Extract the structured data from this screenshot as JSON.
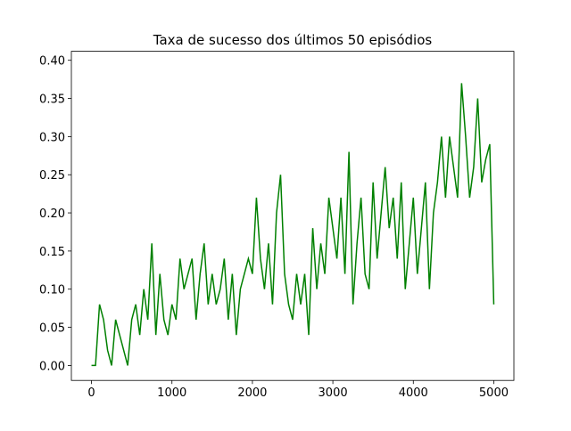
{
  "chart_data": {
    "type": "line",
    "title": "Taxa de sucesso dos últimos 50 episódios",
    "x": [
      0,
      50,
      100,
      150,
      200,
      250,
      300,
      350,
      400,
      450,
      500,
      550,
      600,
      650,
      700,
      750,
      800,
      850,
      900,
      950,
      1000,
      1050,
      1100,
      1150,
      1200,
      1250,
      1300,
      1350,
      1400,
      1450,
      1500,
      1550,
      1600,
      1650,
      1700,
      1750,
      1800,
      1850,
      1900,
      1950,
      2000,
      2050,
      2100,
      2150,
      2200,
      2250,
      2300,
      2350,
      2400,
      2450,
      2500,
      2550,
      2600,
      2650,
      2700,
      2750,
      2800,
      2850,
      2900,
      2950,
      3000,
      3050,
      3100,
      3150,
      3200,
      3250,
      3300,
      3350,
      3400,
      3450,
      3500,
      3550,
      3600,
      3650,
      3700,
      3750,
      3800,
      3850,
      3900,
      3950,
      4000,
      4050,
      4100,
      4150,
      4200,
      4250,
      4300,
      4350,
      4400,
      4450,
      4500,
      4550,
      4600,
      4650,
      4700,
      4750,
      4800,
      4850,
      4900,
      4950,
      5000
    ],
    "values": [
      0,
      0,
      0.08,
      0.06,
      0.02,
      0,
      0.06,
      0.04,
      0.02,
      0,
      0.06,
      0.08,
      0.04,
      0.1,
      0.06,
      0.16,
      0.04,
      0.12,
      0.06,
      0.04,
      0.08,
      0.06,
      0.14,
      0.1,
      0.12,
      0.14,
      0.06,
      0.12,
      0.16,
      0.08,
      0.12,
      0.08,
      0.1,
      0.14,
      0.06,
      0.12,
      0.04,
      0.1,
      0.12,
      0.14,
      0.12,
      0.22,
      0.14,
      0.1,
      0.16,
      0.08,
      0.2,
      0.25,
      0.12,
      0.08,
      0.06,
      0.12,
      0.08,
      0.12,
      0.04,
      0.18,
      0.1,
      0.16,
      0.12,
      0.22,
      0.18,
      0.14,
      0.22,
      0.12,
      0.28,
      0.08,
      0.16,
      0.22,
      0.12,
      0.1,
      0.24,
      0.14,
      0.2,
      0.26,
      0.18,
      0.22,
      0.14,
      0.24,
      0.1,
      0.16,
      0.22,
      0.12,
      0.18,
      0.24,
      0.1,
      0.2,
      0.24,
      0.3,
      0.22,
      0.3,
      0.26,
      0.22,
      0.37,
      0.3,
      0.22,
      0.26,
      0.35,
      0.24,
      0.27,
      0.29,
      0.08
    ],
    "color": "#008000",
    "xlim": [
      -250,
      5250
    ],
    "xticks": [
      0,
      1000,
      2000,
      3000,
      4000,
      5000
    ],
    "ylim": [
      -0.0196,
      0.4118
    ],
    "yticks": [
      {
        "value": 0,
        "label": "0.00"
      },
      {
        "value": 0.05,
        "label": "0.05"
      },
      {
        "value": 0.1,
        "label": "0.10"
      },
      {
        "value": 0.15,
        "label": "0.15"
      },
      {
        "value": 0.2,
        "label": "0.20"
      },
      {
        "value": 0.25,
        "label": "0.25"
      },
      {
        "value": 0.3,
        "label": "0.30"
      },
      {
        "value": 0.35,
        "label": "0.35"
      },
      {
        "value": 0.4,
        "label": "0.40"
      }
    ]
  }
}
